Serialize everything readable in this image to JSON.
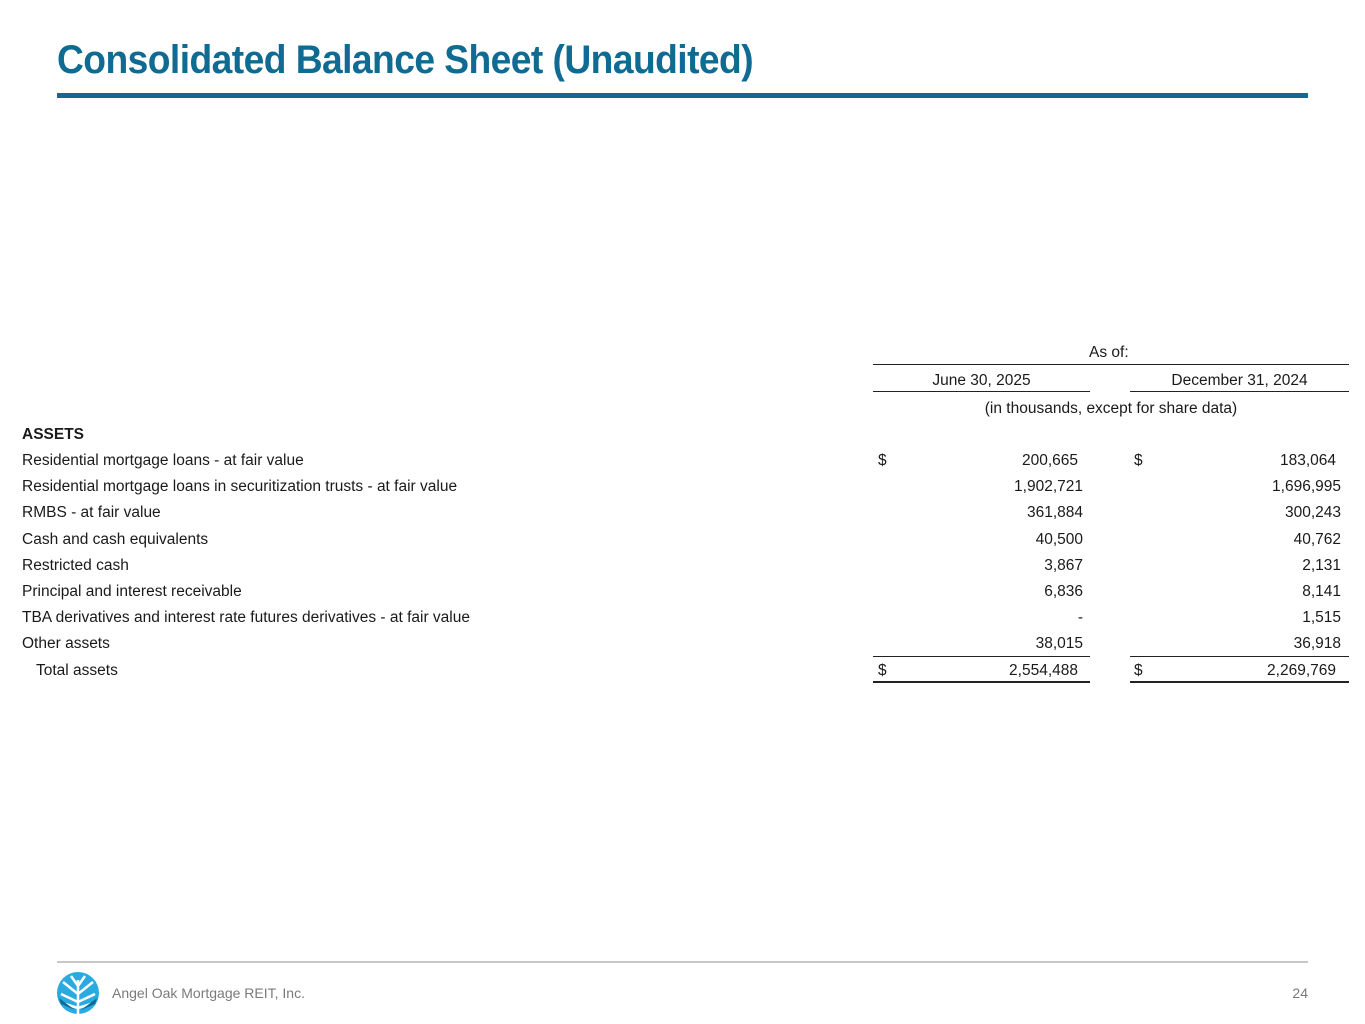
{
  "title": "Consolidated Balance Sheet (Unaudited)",
  "header": {
    "as_of": "As of:",
    "col1": "June 30, 2025",
    "col2": "December 31, 2024",
    "units": "(in thousands, except for share data)"
  },
  "section": "ASSETS",
  "rows": [
    {
      "label": "Residential mortgage loans - at fair value",
      "dollar1": "$",
      "v1": "200,665",
      "dollar2": "$",
      "v2": "183,064"
    },
    {
      "label": "Residential mortgage loans in securitization trusts - at fair value",
      "v1": "1,902,721",
      "v2": "1,696,995"
    },
    {
      "label": "RMBS - at fair value",
      "v1": "361,884",
      "v2": "300,243"
    },
    {
      "label": "Cash and cash equivalents",
      "v1": "40,500",
      "v2": "40,762"
    },
    {
      "label": "Restricted cash",
      "v1": "3,867",
      "v2": "2,131"
    },
    {
      "label": "Principal and interest receivable",
      "v1": "6,836",
      "v2": "8,141"
    },
    {
      "label": "TBA derivatives and interest rate futures derivatives - at fair value",
      "v1": "-",
      "v2": "1,515"
    },
    {
      "label": "Other assets",
      "v1": "38,015",
      "v2": "36,918"
    },
    {
      "label": "Total assets",
      "dollar1": "$",
      "v1": "2,554,488",
      "dollar2": "$",
      "v2": "2,269,769"
    }
  ],
  "footer": {
    "company": "Angel Oak Mortgage REIT, Inc.",
    "page": "24",
    "logo_text": "Angel Oak"
  },
  "colors": {
    "brand": "#0f6b92",
    "logo_light": "#29abe2"
  }
}
